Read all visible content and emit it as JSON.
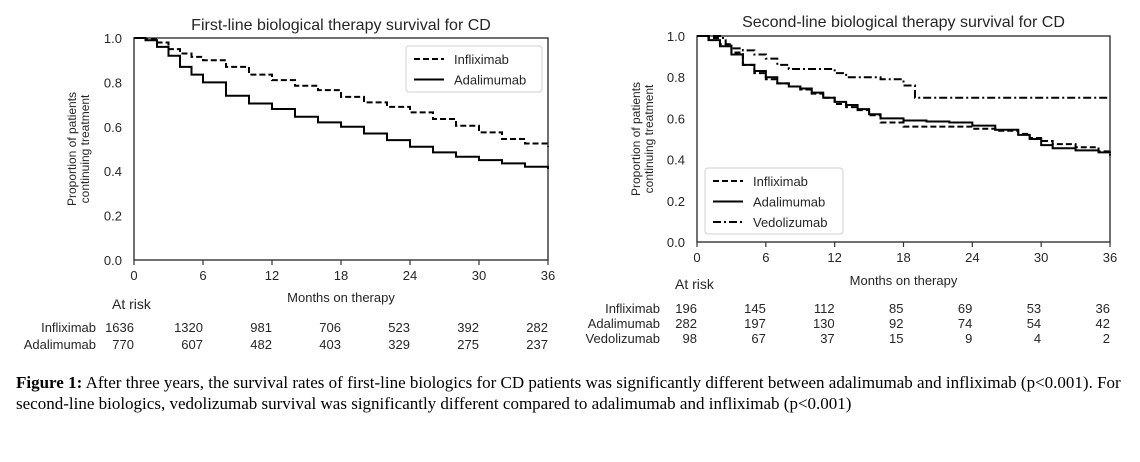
{
  "chart_data": [
    {
      "type": "line",
      "title": "First-line biological therapy survival for CD",
      "xlabel": "Months on therapy",
      "ylabel": "Proportion of patients continuing treatment",
      "ylabel_lines": [
        "Proportion of patients",
        "continuing treatment"
      ],
      "xlim": [
        0,
        36
      ],
      "ylim": [
        0,
        1.0
      ],
      "xticks": [
        "0",
        "6",
        "12",
        "18",
        "24",
        "30",
        "36"
      ],
      "xtick_values": [
        0,
        6,
        12,
        18,
        24,
        30,
        36
      ],
      "yticks": [
        "0.0",
        "0.2",
        "0.4",
        "0.6",
        "0.8",
        "1.0"
      ],
      "ytick_values": [
        0,
        0.2,
        0.4,
        0.6,
        0.8,
        1.0
      ],
      "grid": false,
      "legend_position": "top-right",
      "series": [
        {
          "name": "Infliximab",
          "style": "dashed",
          "x": [
            0,
            1,
            2,
            3,
            4,
            5,
            6,
            8,
            10,
            12,
            14,
            16,
            18,
            20,
            22,
            24,
            26,
            28,
            30,
            32,
            34,
            36
          ],
          "y": [
            1.0,
            0.995,
            0.98,
            0.95,
            0.93,
            0.915,
            0.9,
            0.87,
            0.835,
            0.81,
            0.785,
            0.765,
            0.735,
            0.71,
            0.69,
            0.665,
            0.635,
            0.605,
            0.575,
            0.545,
            0.525,
            0.51
          ]
        },
        {
          "name": "Adalimumab",
          "style": "solid",
          "x": [
            0,
            1,
            2,
            3,
            4,
            5,
            6,
            8,
            10,
            12,
            14,
            16,
            18,
            20,
            22,
            24,
            26,
            28,
            30,
            32,
            34,
            36
          ],
          "y": [
            1.0,
            0.99,
            0.96,
            0.92,
            0.87,
            0.835,
            0.8,
            0.74,
            0.705,
            0.68,
            0.645,
            0.62,
            0.6,
            0.57,
            0.54,
            0.51,
            0.485,
            0.465,
            0.45,
            0.435,
            0.42,
            0.41
          ]
        }
      ],
      "at_risk": {
        "label": "At risk",
        "rows": [
          {
            "name": "Infliximab",
            "values": [
              1636,
              1320,
              981,
              706,
              523,
              392,
              282
            ]
          },
          {
            "name": "Adalimumab",
            "values": [
              770,
              607,
              482,
              403,
              329,
              275,
              237
            ]
          }
        ]
      }
    },
    {
      "type": "line",
      "title": "Second-line biological therapy survival for CD",
      "xlabel": "Months on therapy",
      "ylabel": "Proportion of patients continuing treatment",
      "ylabel_lines": [
        "Proportion of patients",
        "continuing treatment"
      ],
      "xlim": [
        0,
        36
      ],
      "ylim": [
        0,
        1.0
      ],
      "xticks": [
        "0",
        "6",
        "12",
        "18",
        "24",
        "30",
        "36"
      ],
      "xtick_values": [
        0,
        6,
        12,
        18,
        24,
        30,
        36
      ],
      "yticks": [
        "0.0",
        "0.2",
        "0.4",
        "0.6",
        "0.8",
        "1.0"
      ],
      "ytick_values": [
        0,
        0.2,
        0.4,
        0.6,
        0.8,
        1.0
      ],
      "grid": false,
      "legend_position": "bottom-left",
      "series": [
        {
          "name": "Infliximab",
          "style": "dashed",
          "x": [
            0,
            1,
            2,
            3,
            4,
            5,
            6,
            7,
            8,
            9,
            10,
            11,
            12,
            13,
            14,
            15,
            16,
            18,
            20,
            22,
            24,
            26,
            28,
            29,
            30,
            31,
            33,
            35,
            36
          ],
          "y": [
            1.0,
            0.99,
            0.96,
            0.92,
            0.86,
            0.82,
            0.79,
            0.77,
            0.755,
            0.74,
            0.72,
            0.7,
            0.67,
            0.655,
            0.64,
            0.615,
            0.58,
            0.56,
            0.56,
            0.56,
            0.55,
            0.54,
            0.525,
            0.505,
            0.49,
            0.475,
            0.46,
            0.44,
            0.42
          ]
        },
        {
          "name": "Adalimumab",
          "style": "solid",
          "x": [
            0,
            1,
            2,
            3,
            4,
            5,
            6,
            7,
            8,
            9,
            10,
            11,
            12,
            13,
            14,
            15,
            16,
            18,
            20,
            22,
            24,
            26,
            28,
            29,
            30,
            31,
            33,
            35,
            36
          ],
          "y": [
            1.0,
            0.98,
            0.95,
            0.91,
            0.86,
            0.83,
            0.8,
            0.77,
            0.755,
            0.745,
            0.725,
            0.7,
            0.68,
            0.665,
            0.645,
            0.62,
            0.6,
            0.59,
            0.585,
            0.58,
            0.565,
            0.545,
            0.52,
            0.5,
            0.47,
            0.455,
            0.445,
            0.435,
            0.43
          ]
        },
        {
          "name": "Vedolizumab",
          "style": "dashdot",
          "x": [
            0,
            2,
            2.5,
            3,
            4,
            5,
            6,
            7,
            8,
            12,
            13,
            15,
            16,
            18,
            18.5,
            19,
            36
          ],
          "y": [
            1.0,
            0.99,
            0.96,
            0.94,
            0.93,
            0.91,
            0.89,
            0.86,
            0.84,
            0.82,
            0.8,
            0.8,
            0.79,
            0.76,
            0.76,
            0.7,
            0.7
          ]
        }
      ],
      "at_risk": {
        "label": "At risk",
        "rows": [
          {
            "name": "Infliximab",
            "values": [
              196,
              145,
              112,
              85,
              69,
              53,
              36
            ]
          },
          {
            "name": "Adalimumab",
            "values": [
              282,
              197,
              130,
              92,
              74,
              54,
              42
            ]
          },
          {
            "name": "Vedolizumab",
            "values": [
              98,
              67,
              37,
              15,
              9,
              4,
              2
            ]
          }
        ]
      }
    }
  ],
  "caption": {
    "label": "Figure 1:",
    "text": " After three years, the survival rates of first-line biologics for CD patients was significantly different between adalimumab and infliximab (p<0.001). For second-line biologics, vedolizumab survival was significantly different compared to adalimumab and infliximab (p<0.001)"
  }
}
